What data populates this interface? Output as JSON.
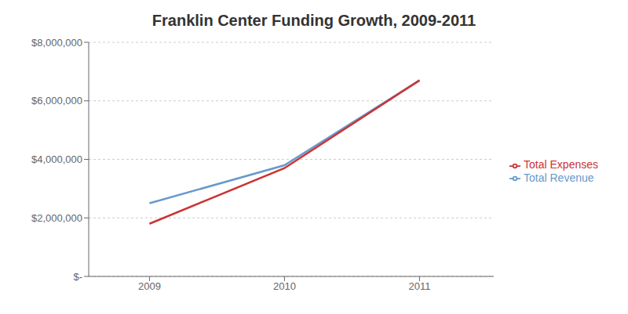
{
  "chart_data": {
    "type": "line",
    "title": "Franklin Center Funding Growth, 2009-2011",
    "x": [
      2009,
      2010,
      2011
    ],
    "series": [
      {
        "name": "Total Revenue",
        "color": "#6699CC",
        "values": [
          2500000,
          3800000,
          6700000
        ]
      },
      {
        "name": "Total Expenses",
        "color": "#CC3333",
        "values": [
          1800000,
          3700000,
          6700000
        ]
      }
    ],
    "xlim": [
      2008.55,
      2011.55
    ],
    "xticks": [
      2009,
      2010,
      2011
    ],
    "ylim": [
      0,
      8000000
    ],
    "yticks": [
      {
        "value": 0,
        "label": "$-"
      },
      {
        "value": 2000000,
        "label": "$2,000,000"
      },
      {
        "value": 4000000,
        "label": "$4,000,000"
      },
      {
        "value": 6000000,
        "label": "$6,000,000"
      },
      {
        "value": 8000000,
        "label": "$8,000,000"
      }
    ],
    "grid": true,
    "legend": "right"
  }
}
